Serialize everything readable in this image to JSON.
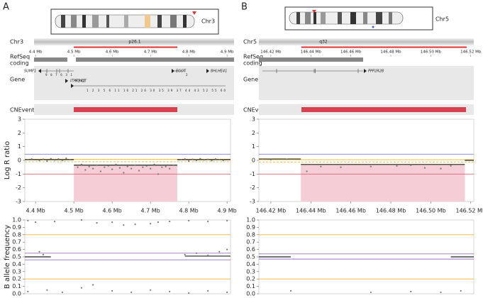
{
  "panels": [
    {
      "letter": "A",
      "chromosome": "Chr3",
      "band": "p26.1",
      "tracks": {
        "refseq": [
          "RefSeq",
          "coding"
        ],
        "gene": "Gene",
        "cnevent": "CNEvent"
      },
      "genes": [
        "SUMF1",
        "ITPR1-DT",
        "EGOT",
        "BHLHE41",
        "ITPR1"
      ],
      "exon_labels": [
        "9 8 7 6 3 1",
        "2",
        "1 2 3 5 6 11 16 21 26 30 35 39 37 44 43 52 55 60"
      ]
    },
    {
      "letter": "B",
      "chromosome": "Chr5",
      "band": "q32",
      "tracks": {
        "refseq": [
          "RefSeq",
          "coding"
        ],
        "gene": "Gene",
        "cnevent": "CNEvent"
      },
      "genes": [
        "PPP2R2B"
      ]
    }
  ],
  "chart_data": [
    {
      "type": "scatter",
      "ylabel": "Log R ratio",
      "xlim": [
        4.372,
        4.909
      ],
      "xticks": [
        {
          "value": 4.4,
          "label": "4.4 Mb"
        },
        {
          "value": 4.5,
          "label": "4.5 Mb"
        },
        {
          "value": 4.6,
          "label": "4.6 Mb"
        },
        {
          "value": 4.7,
          "label": "4.7 Mb"
        },
        {
          "value": 4.8,
          "label": "4.8 Mb"
        },
        {
          "value": 4.9,
          "label": "4.9 Mb"
        }
      ],
      "ylim": [
        -3,
        3
      ],
      "yticks": [
        -3,
        -2,
        -1,
        0,
        1,
        2,
        3
      ],
      "shade": {
        "x": [
          4.5,
          4.77
        ],
        "y": [
          -3,
          -0.35
        ],
        "color": "#f4cdd7"
      },
      "hlines": [
        {
          "y": 0.45,
          "color": "#7b7fd4"
        },
        {
          "y": 0.08,
          "color": "#f0b429"
        },
        {
          "y": -0.1,
          "color": "#f0b429",
          "dashed": true
        },
        {
          "y": -1,
          "color": "#e06070"
        }
      ],
      "segments": [
        {
          "x": [
            4.372,
            4.5
          ],
          "y": 0.05
        },
        {
          "x": [
            4.5,
            4.77
          ],
          "y": -0.35
        },
        {
          "x": [
            4.77,
            4.909
          ],
          "y": 0.05
        }
      ],
      "segment_color": "#222",
      "point_color": "#777",
      "x": [
        4.38,
        4.39,
        4.41,
        4.42,
        4.43,
        4.44,
        4.45,
        4.46,
        4.47,
        4.48,
        4.49,
        4.51,
        4.52,
        4.53,
        4.54,
        4.55,
        4.56,
        4.57,
        4.58,
        4.59,
        4.6,
        4.61,
        4.62,
        4.63,
        4.64,
        4.65,
        4.66,
        4.67,
        4.68,
        4.69,
        4.7,
        4.71,
        4.72,
        4.73,
        4.74,
        4.75,
        4.76,
        4.78,
        4.79,
        4.8,
        4.81,
        4.82,
        4.83,
        4.84,
        4.85,
        4.86,
        4.87,
        4.88,
        4.89
      ],
      "y": [
        0.05,
        0.1,
        0,
        0.08,
        -0.05,
        0.12,
        0.02,
        0.1,
        0,
        0.15,
        0.05,
        -0.5,
        -0.3,
        -0.7,
        -0.45,
        -0.6,
        -0.35,
        -0.8,
        -0.5,
        -0.4,
        -0.65,
        -0.3,
        -0.55,
        -0.9,
        -0.45,
        -0.6,
        -0.35,
        -0.75,
        -0.5,
        -0.4,
        -0.6,
        -0.3,
        -1,
        -0.5,
        -0.45,
        -0.6,
        -0.35,
        0.05,
        0.1,
        -0.05,
        0.08,
        0,
        0.12,
        0.03,
        0.07,
        -0.02,
        0.1,
        0.05,
        0
      ]
    },
    {
      "type": "scatter",
      "xlim": [
        146.414,
        146.5215
      ],
      "xticks": [
        {
          "value": 146.42,
          "label": "146.42 Mb"
        },
        {
          "value": 146.44,
          "label": "146.44 Mb"
        },
        {
          "value": 146.46,
          "label": "146.46 Mb"
        },
        {
          "value": 146.48,
          "label": "146.48 Mb"
        },
        {
          "value": 146.5,
          "label": "146.50 Mb"
        },
        {
          "value": 146.52,
          "label": "146.52 Mb"
        }
      ],
      "ylim": [
        -3,
        3
      ],
      "yticks": [
        -3,
        -2,
        -1,
        0,
        1,
        2,
        3
      ],
      "shade": {
        "x": [
          146.435,
          146.517
        ],
        "y": [
          -3,
          -0.3
        ],
        "color": "#f4cdd7"
      },
      "hlines": [
        {
          "y": 0.45,
          "color": "#7b7fd4"
        },
        {
          "y": 0.05,
          "color": "#f0b429"
        },
        {
          "y": -0.12,
          "color": "#f0b429",
          "dashed": true
        },
        {
          "y": -1,
          "color": "#e06070"
        }
      ],
      "segments": [
        {
          "x": [
            146.414,
            146.435
          ],
          "y": 0.1
        },
        {
          "x": [
            146.435,
            146.517
          ],
          "y": -0.3
        },
        {
          "x": [
            146.517,
            146.5215
          ],
          "y": 0
        }
      ],
      "segment_color": "#222",
      "point_color": "#777",
      "x": [
        146.416,
        146.42,
        146.428,
        146.438,
        146.445,
        146.455,
        146.47,
        146.483,
        146.49,
        146.497,
        146.505,
        146.51
      ],
      "y": [
        0.1,
        0.05,
        0.08,
        -0.8,
        -0.45,
        -0.5,
        -0.45,
        -0.4,
        -0.35,
        -0.55,
        -0.6,
        -0.4
      ]
    },
    {
      "type": "scatter",
      "ylabel": "B allele frequency",
      "xlim": [
        4.372,
        4.909
      ],
      "ylim": [
        0,
        1
      ],
      "yticks": [
        {
          "value": 0,
          "label": "0.0"
        },
        0.1,
        0.2,
        0.3,
        0.4,
        0.5,
        0.6,
        0.7,
        0.8,
        0.9,
        {
          "value": 1,
          "label": "1.0"
        }
      ],
      "hlines": [
        {
          "y": 0.8,
          "color": "#f0b429"
        },
        {
          "y": 0.2,
          "color": "#f0b429"
        },
        {
          "y": 0.55,
          "color": "#9a6fc0"
        },
        {
          "y": 0.46,
          "color": "#9a6fc0"
        }
      ],
      "segments": [
        {
          "x": [
            4.372,
            4.44
          ],
          "y": 0.5
        },
        {
          "x": [
            4.79,
            4.909
          ],
          "y": 0.51
        }
      ],
      "segment_color": "#222",
      "point_color": "#777",
      "x": [
        4.38,
        4.4,
        4.45,
        4.52,
        4.56,
        4.6,
        4.63,
        4.66,
        4.7,
        4.72,
        4.75,
        4.8,
        4.85,
        4.9,
        4.41,
        4.42,
        4.79,
        4.82,
        4.85,
        4.88,
        4.9,
        4.38,
        4.43,
        4.47,
        4.52,
        4.55,
        4.6,
        4.65,
        4.7,
        4.75,
        4.8,
        4.85,
        4.9
      ],
      "y": [
        0.99,
        0.97,
        0.98,
        1,
        0.96,
        0.97,
        0.93,
        0.94,
        0.95,
        0.97,
        0.98,
        0.99,
        0.98,
        0.99,
        0.57,
        0.53,
        0.53,
        0.55,
        0.52,
        0.57,
        0.6,
        0.03,
        0.05,
        0.02,
        0.08,
        0.12,
        0.04,
        0.02,
        0.05,
        0.03,
        0.01,
        0.04,
        0.02
      ]
    },
    {
      "type": "scatter",
      "xlim": [
        146.414,
        146.5215
      ],
      "ylim": [
        0,
        1
      ],
      "yticks": [
        {
          "value": 0,
          "label": "0.0"
        },
        0.1,
        0.2,
        0.3,
        0.4,
        0.5,
        0.6,
        0.7,
        0.8,
        0.9,
        {
          "value": 1,
          "label": "1.0"
        }
      ],
      "hlines": [
        {
          "y": 0.8,
          "color": "#f0b429"
        },
        {
          "y": 0.2,
          "color": "#f0b429"
        },
        {
          "y": 0.54,
          "color": "#9a6fc0"
        },
        {
          "y": 0.47,
          "color": "#9a6fc0"
        }
      ],
      "segments": [
        {
          "x": [
            146.414,
            146.43
          ],
          "y": 0.5
        },
        {
          "x": [
            146.51,
            146.5215
          ],
          "y": 0.5
        }
      ],
      "segment_color": "#222",
      "point_color": "#777",
      "x": [
        146.43,
        146.47,
        146.49,
        146.505,
        146.515
      ],
      "y": [
        0.04,
        0.02,
        0.03,
        0.02,
        0.04
      ]
    }
  ]
}
